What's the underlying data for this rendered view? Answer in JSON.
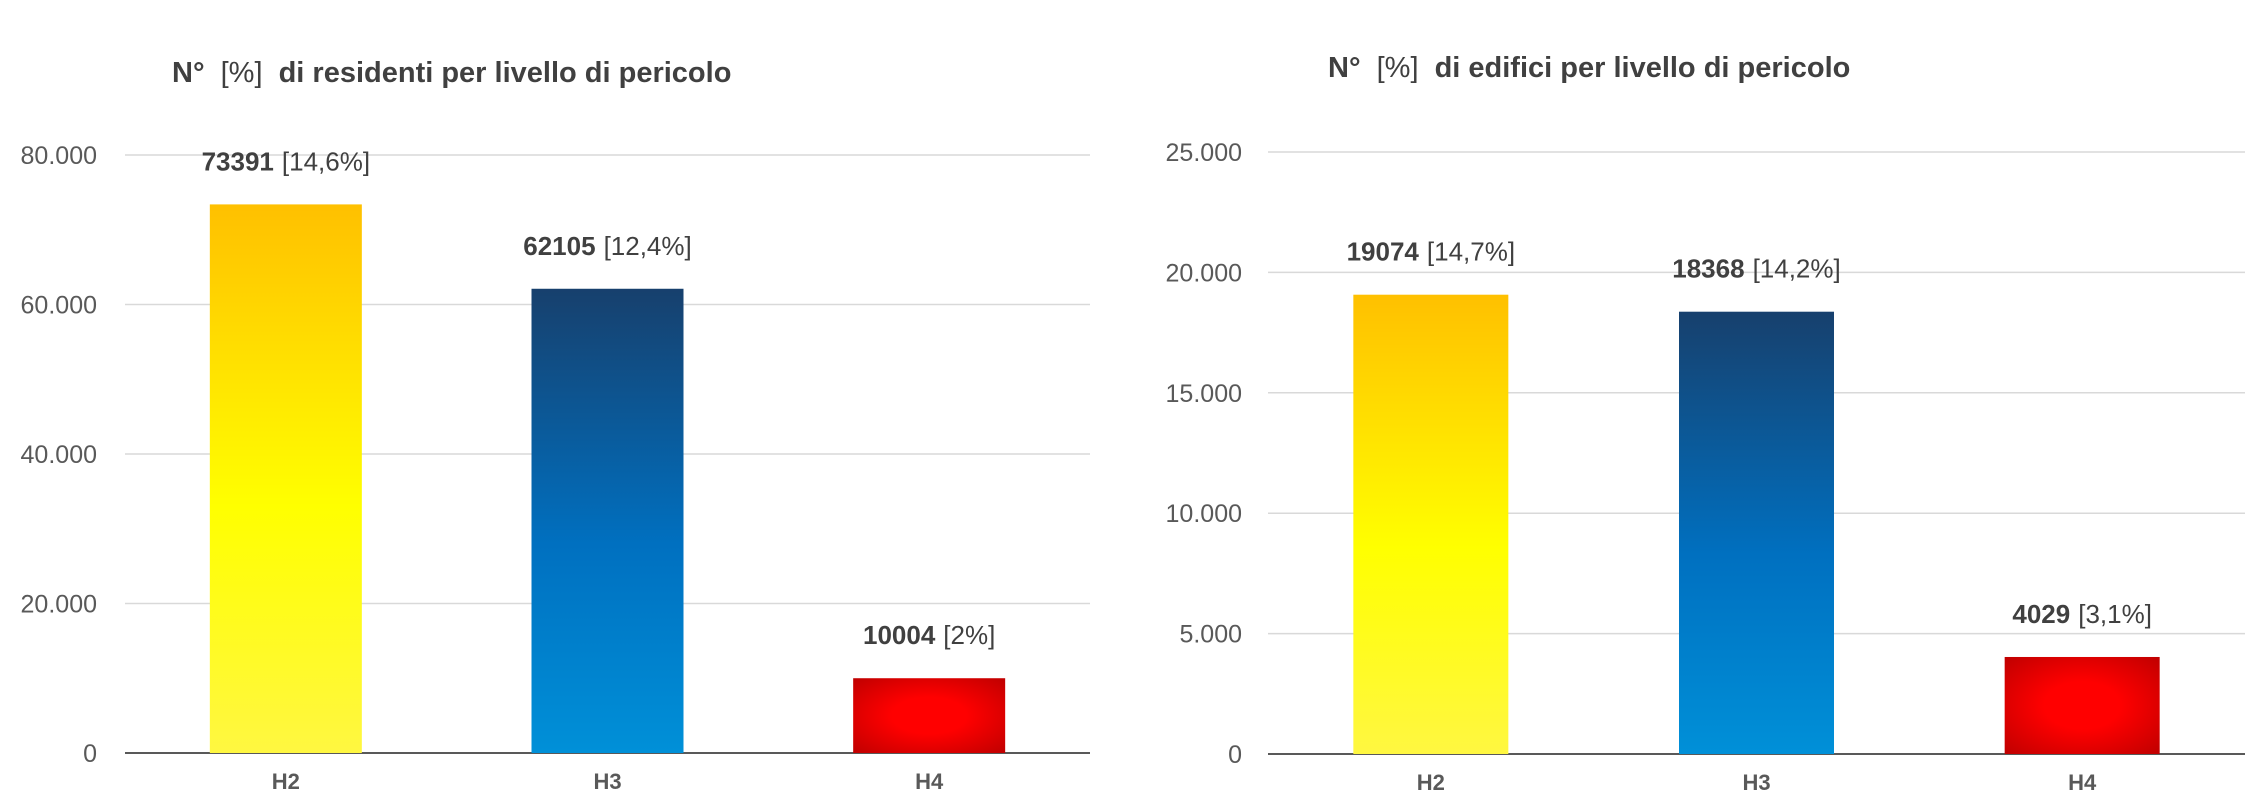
{
  "colors": {
    "H2": [
      "#fff741",
      "#ffff00",
      "#ffc000"
    ],
    "H3": [
      "#0090d8",
      "#0070c0",
      "#17406d"
    ],
    "H4": [
      "#ff0000",
      "#c00000"
    ],
    "grid": "#d9d9d9",
    "axis": "#595959",
    "text": "#404040"
  },
  "chart_data": [
    {
      "type": "bar",
      "title_bold_a": "N°",
      "title_mid": "[%]",
      "title_bold_b": "di residenti per livello di pericolo",
      "categories": [
        "H2",
        "H3",
        "H4"
      ],
      "values": [
        73391,
        62105,
        10004
      ],
      "value_labels": [
        "73391",
        "62105",
        "10004"
      ],
      "percent_labels": [
        "[14,6%]",
        "[12,4%]",
        "[2%]"
      ],
      "ylim": [
        0,
        80000
      ],
      "yticks": [
        0,
        20000,
        40000,
        60000,
        80000
      ],
      "ytick_labels": [
        "0",
        "20.000",
        "40.000",
        "60.000",
        "80.000"
      ],
      "grid": true
    },
    {
      "type": "bar",
      "title_bold_a": "N°",
      "title_mid": "[%]",
      "title_bold_b": "di edifici per livello di pericolo",
      "categories": [
        "H2",
        "H3",
        "H4"
      ],
      "values": [
        19074,
        18368,
        4029
      ],
      "value_labels": [
        "19074",
        "18368",
        "4029"
      ],
      "percent_labels": [
        "[14,7%]",
        "[14,2%]",
        "[3,1%]"
      ],
      "ylim": [
        0,
        25000
      ],
      "yticks": [
        0,
        5000,
        10000,
        15000,
        20000,
        25000
      ],
      "ytick_labels": [
        "0",
        "5.000",
        "10.000",
        "15.000",
        "20.000",
        "25.000"
      ],
      "grid": true
    }
  ]
}
